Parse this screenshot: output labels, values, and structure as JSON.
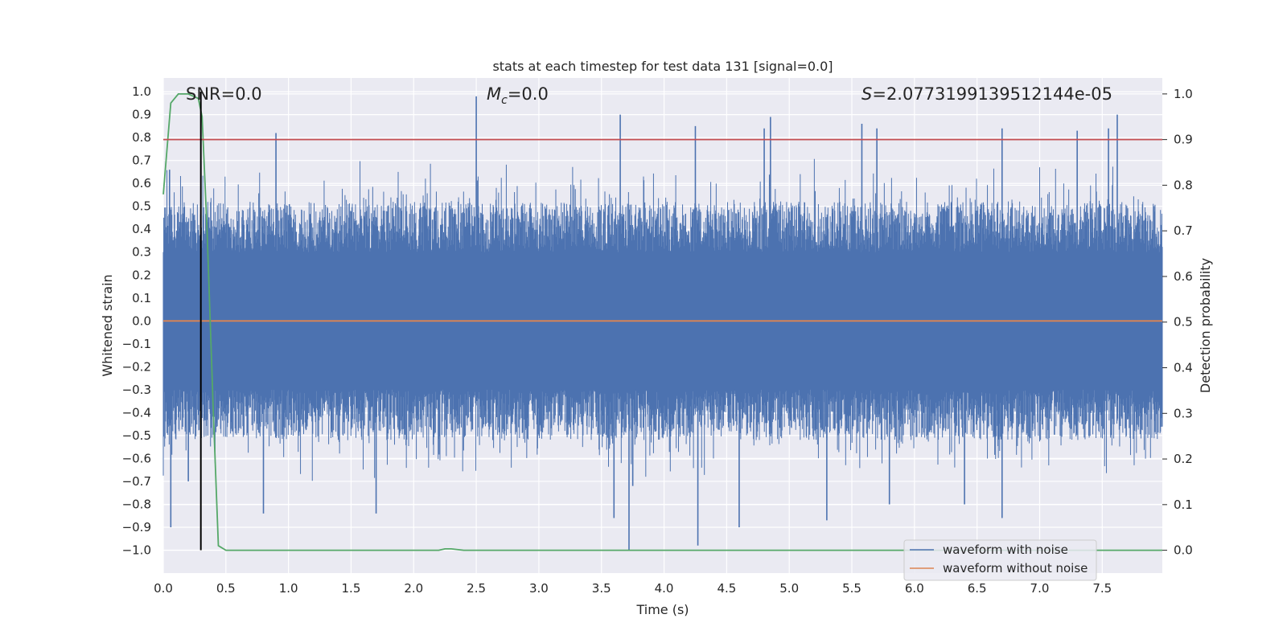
{
  "chart_data": {
    "type": "line",
    "title": "stats at each timestep for test data 131 [signal=0.0]",
    "xlabel": "Time (s)",
    "ylabel_left": "Whitened strain",
    "ylabel_right": "Detection probability",
    "xlim": [
      0.0,
      7.98
    ],
    "ylim_left": [
      -1.1,
      1.06
    ],
    "ylim_right": [
      -0.05,
      1.035
    ],
    "x_ticks": [
      0.0,
      0.5,
      1.0,
      1.5,
      2.0,
      2.5,
      3.0,
      3.5,
      4.0,
      4.5,
      5.0,
      5.5,
      6.0,
      6.5,
      7.0,
      7.5
    ],
    "x_tick_labels": [
      "0.0",
      "0.5",
      "1.0",
      "1.5",
      "2.0",
      "2.5",
      "3.0",
      "3.5",
      "4.0",
      "4.5",
      "5.0",
      "5.5",
      "6.0",
      "6.5",
      "7.0",
      "7.5"
    ],
    "y_left_ticks": [
      1.0,
      0.9,
      0.8,
      0.7,
      0.6,
      0.5,
      0.4,
      0.3,
      0.2,
      0.1,
      0.0,
      -0.1,
      -0.2,
      -0.3,
      -0.4,
      -0.5,
      -0.6,
      -0.7,
      -0.8,
      -0.9,
      -1.0
    ],
    "y_left_tick_labels": [
      "1.0",
      "0.9",
      "0.8",
      "0.7",
      "0.6",
      "0.5",
      "0.4",
      "0.3",
      "0.2",
      "0.1",
      "0.0",
      "−0.1",
      "−0.2",
      "−0.3",
      "−0.4",
      "−0.5",
      "−0.6",
      "−0.7",
      "−0.8",
      "−0.9",
      "−1.0"
    ],
    "y_right_ticks": [
      1.0,
      0.9,
      0.8,
      0.7,
      0.6,
      0.5,
      0.4,
      0.3,
      0.2,
      0.1,
      0.0
    ],
    "y_right_tick_labels": [
      "1.0",
      "0.9",
      "0.8",
      "0.7",
      "0.6",
      "0.5",
      "0.4",
      "0.3",
      "0.2",
      "0.1",
      "0.0"
    ],
    "grid": true,
    "annotations": {
      "snr": "SNR=0.0",
      "mc_symbol": "M",
      "mc_sub": "c",
      "mc_value": "=0.0",
      "s_symbol": "S",
      "s_value": "=2.0773199139512144e-05"
    },
    "legend": {
      "placement": "lower-right",
      "entries": [
        {
          "label": "waveform with noise",
          "color": "#4c72b0"
        },
        {
          "label": "waveform without noise",
          "color": "#dd8452"
        }
      ]
    },
    "series": [
      {
        "name": "waveform with noise",
        "axis": "left",
        "color": "#4c72b0",
        "noise_band": {
          "typical_amplitude": 0.3,
          "peak_max": 0.98,
          "peak_min": -1.0
        },
        "peaks": [
          {
            "x": 0.05,
            "y": 0.66
          },
          {
            "x": 0.06,
            "y": -0.9
          },
          {
            "x": 0.2,
            "y": -0.7
          },
          {
            "x": 0.9,
            "y": 0.82
          },
          {
            "x": 0.8,
            "y": -0.84
          },
          {
            "x": 1.7,
            "y": -0.84
          },
          {
            "x": 2.5,
            "y": 0.98
          },
          {
            "x": 3.65,
            "y": 0.9
          },
          {
            "x": 3.6,
            "y": -0.86
          },
          {
            "x": 3.72,
            "y": -1.0
          },
          {
            "x": 3.75,
            "y": -0.72
          },
          {
            "x": 4.25,
            "y": 0.85
          },
          {
            "x": 4.27,
            "y": -0.98
          },
          {
            "x": 4.6,
            "y": -0.9
          },
          {
            "x": 4.85,
            "y": 0.89
          },
          {
            "x": 4.8,
            "y": 0.84
          },
          {
            "x": 5.3,
            "y": -0.87
          },
          {
            "x": 5.58,
            "y": 0.86
          },
          {
            "x": 5.7,
            "y": 0.84
          },
          {
            "x": 5.8,
            "y": -0.8
          },
          {
            "x": 6.4,
            "y": -0.8
          },
          {
            "x": 6.7,
            "y": 0.84
          },
          {
            "x": 6.7,
            "y": -0.86
          },
          {
            "x": 7.3,
            "y": 0.83
          },
          {
            "x": 7.55,
            "y": 0.84
          },
          {
            "x": 7.62,
            "y": 0.9
          }
        ]
      },
      {
        "name": "waveform without noise",
        "axis": "left",
        "color": "#dd8452",
        "x": [
          0.0,
          7.98
        ],
        "y": [
          0.0,
          0.0
        ]
      },
      {
        "name": "detection probability",
        "axis": "right",
        "color": "#55a868",
        "x": [
          0.0,
          0.06,
          0.12,
          0.2,
          0.28,
          0.31,
          0.35,
          0.4,
          0.44,
          0.5,
          2.2,
          2.25,
          2.3,
          2.4,
          7.98
        ],
        "y": [
          0.78,
          0.98,
          1.0,
          1.0,
          0.99,
          0.95,
          0.7,
          0.3,
          0.01,
          0.0,
          0.0,
          0.003,
          0.003,
          0.0,
          0.0
        ]
      },
      {
        "name": "threshold",
        "axis": "right",
        "color": "#c44e52",
        "x": [
          0.0,
          7.98
        ],
        "y": [
          0.9,
          0.9
        ]
      },
      {
        "name": "marker",
        "axis": "left",
        "color": "#000000",
        "x": [
          0.3,
          0.3
        ],
        "y": [
          -1.0,
          1.0
        ]
      }
    ]
  }
}
